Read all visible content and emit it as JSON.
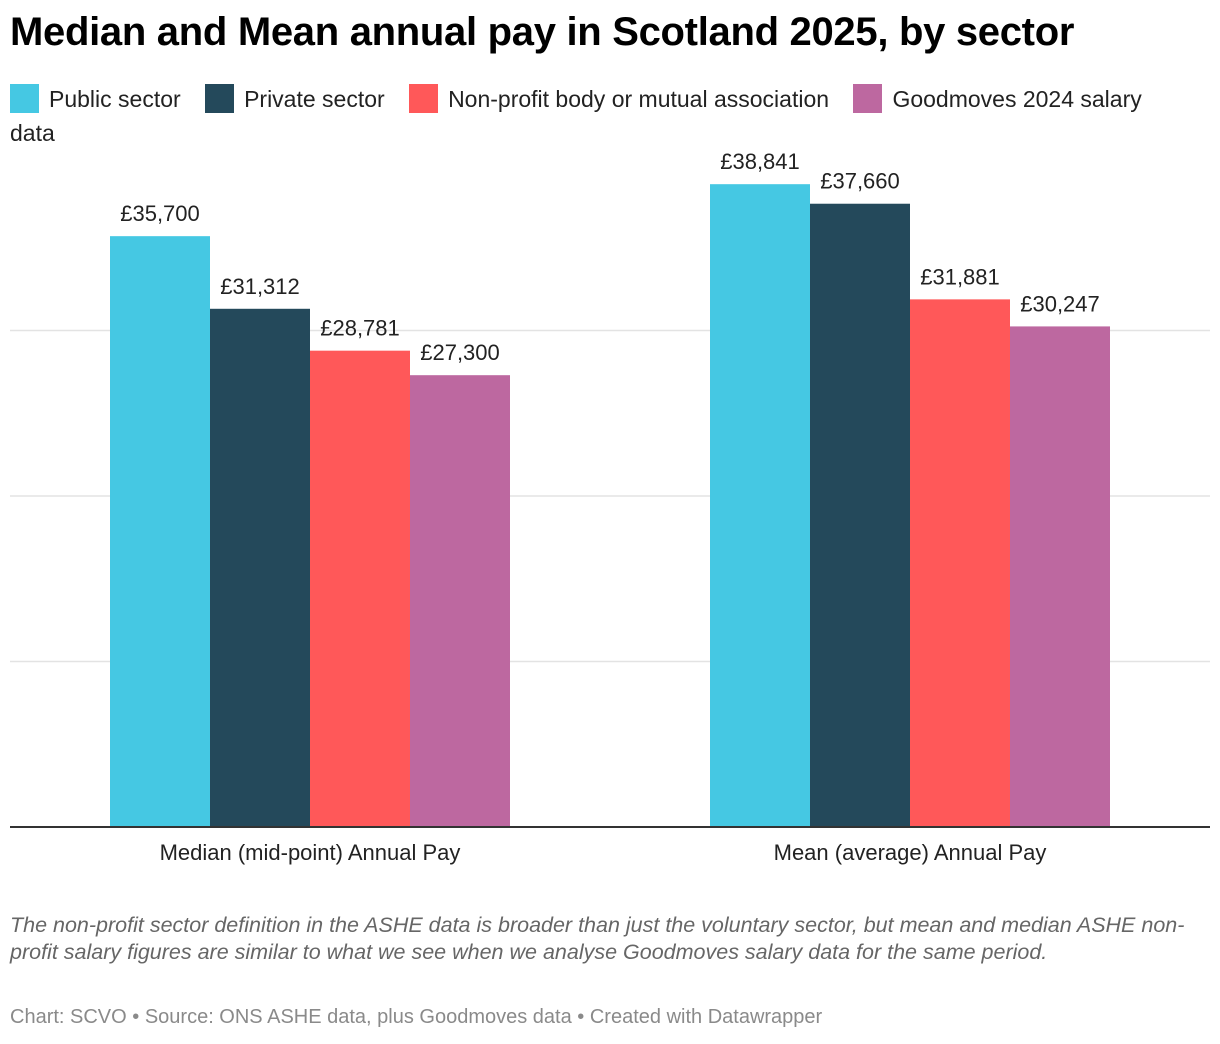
{
  "title": "Median and Mean annual pay in Scotland 2025, by sector",
  "notes": "The non-profit sector definition in the ASHE data is broader than just the voluntary sector, but mean and median ASHE non-profit salary figures are similar to what we see when we analyse Goodmoves salary data for the same period.",
  "footer": {
    "chart_by": "Chart: SCVO",
    "sep1": " • ",
    "source": "Source: ONS ASHE data, plus Goodmoves data",
    "sep2": " • ",
    "created": "Created with Datawrapper"
  },
  "chart_data": {
    "type": "bar",
    "title": "Median and Mean annual pay in Scotland 2025, by sector",
    "categories": [
      "Median (mid-point) Annual Pay",
      "Mean (average) Annual Pay"
    ],
    "series": [
      {
        "name": "Public sector",
        "color": "#45c8e3",
        "values": [
          35700,
          38841
        ],
        "labels": [
          "£35,700",
          "£38,841"
        ]
      },
      {
        "name": "Private sector",
        "color": "#24495b",
        "values": [
          31312,
          37660
        ],
        "labels": [
          "£31,312",
          "£37,660"
        ]
      },
      {
        "name": "Non-profit body or mutual association",
        "color": "#ff5859",
        "values": [
          28781,
          31881
        ],
        "labels": [
          "£28,781",
          "£31,881"
        ]
      },
      {
        "name": "Goodmoves 2024 salary data",
        "color": "#bd68a0",
        "values": [
          27300,
          30247
        ],
        "labels": [
          "£27,300",
          "£30,247"
        ]
      }
    ],
    "ylim": [
      0,
      40000
    ],
    "grid": true,
    "legend_position": "top"
  }
}
